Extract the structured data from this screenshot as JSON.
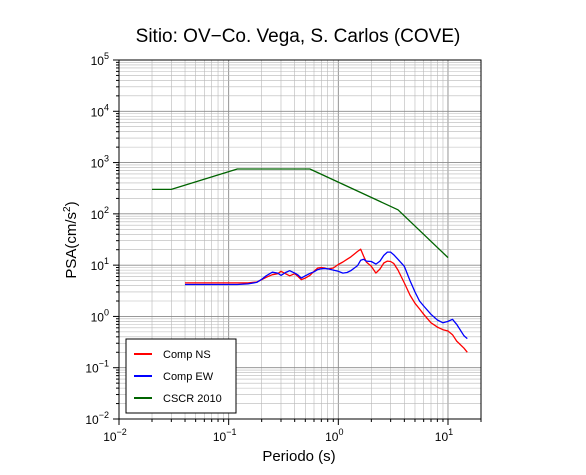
{
  "chart_data": {
    "type": "line",
    "title": "Sitio: OV−Co. Vega, S. Carlos (COVE)",
    "xlabel": "Periodo (s)",
    "ylabel_base": "PSA(cm/s",
    "ylabel_sup": "2",
    "ylabel_end": ")",
    "x_scale": "log",
    "y_scale": "log",
    "xlim": [
      0.01,
      20
    ],
    "ylim": [
      0.01,
      100000
    ],
    "grid": true,
    "legend_position": "bottom-left",
    "x_ticks": [
      {
        "value": 0.01,
        "base": "10",
        "exp": "−2"
      },
      {
        "value": 0.1,
        "base": "10",
        "exp": "−1"
      },
      {
        "value": 1,
        "base": "10",
        "exp": "0"
      },
      {
        "value": 10,
        "base": "10",
        "exp": "1"
      }
    ],
    "y_ticks": [
      {
        "value": 0.01,
        "base": "10",
        "exp": "−2"
      },
      {
        "value": 0.1,
        "base": "10",
        "exp": "−1"
      },
      {
        "value": 1,
        "base": "10",
        "exp": "0"
      },
      {
        "value": 10,
        "base": "10",
        "exp": "1"
      },
      {
        "value": 100,
        "base": "10",
        "exp": "2"
      },
      {
        "value": 1000,
        "base": "10",
        "exp": "3"
      },
      {
        "value": 10000,
        "base": "10",
        "exp": "4"
      },
      {
        "value": 100000,
        "base": "10",
        "exp": "5"
      }
    ],
    "series": [
      {
        "name": "Comp NS",
        "color": "#ff0000",
        "x": [
          0.04,
          0.06,
          0.08,
          0.1,
          0.12,
          0.15,
          0.18,
          0.2,
          0.22,
          0.25,
          0.28,
          0.3,
          0.33,
          0.36,
          0.4,
          0.43,
          0.46,
          0.5,
          0.55,
          0.6,
          0.65,
          0.7,
          0.75,
          0.8,
          0.9,
          1.0,
          1.1,
          1.2,
          1.3,
          1.4,
          1.5,
          1.6,
          1.7,
          1.8,
          2.0,
          2.2,
          2.4,
          2.6,
          2.8,
          3.0,
          3.2,
          3.5,
          4.0,
          4.5,
          5.0,
          5.5,
          6.0,
          7.0,
          8.0,
          9.0,
          10,
          11,
          12,
          14,
          15
        ],
        "y": [
          4.5,
          4.5,
          4.5,
          4.5,
          4.5,
          4.5,
          4.7,
          5.2,
          5.8,
          6.5,
          6.8,
          7.6,
          6.8,
          6.2,
          6.8,
          6.0,
          5.2,
          5.6,
          6.3,
          7.6,
          8.8,
          9.0,
          8.8,
          8.4,
          8.8,
          10.3,
          11.5,
          13.0,
          14.5,
          16.5,
          18.5,
          20.5,
          15.0,
          11.5,
          9.5,
          7.0,
          8.4,
          11.0,
          12.0,
          11.8,
          10.8,
          8.0,
          4.5,
          2.6,
          1.8,
          1.4,
          1.1,
          0.75,
          0.62,
          0.55,
          0.52,
          0.44,
          0.33,
          0.24,
          0.2
        ]
      },
      {
        "name": "Comp EW",
        "color": "#0000ff",
        "x": [
          0.04,
          0.06,
          0.08,
          0.1,
          0.12,
          0.15,
          0.18,
          0.2,
          0.22,
          0.25,
          0.28,
          0.3,
          0.33,
          0.36,
          0.4,
          0.43,
          0.46,
          0.5,
          0.55,
          0.6,
          0.65,
          0.7,
          0.75,
          0.8,
          0.9,
          1.0,
          1.1,
          1.2,
          1.3,
          1.4,
          1.5,
          1.6,
          1.7,
          1.8,
          2.0,
          2.2,
          2.4,
          2.6,
          2.8,
          3.0,
          3.2,
          3.5,
          4.0,
          4.5,
          5.0,
          5.5,
          6.0,
          7.0,
          8.0,
          9.0,
          10,
          11,
          12,
          14,
          15
        ],
        "y": [
          4.2,
          4.2,
          4.2,
          4.2,
          4.2,
          4.3,
          4.6,
          5.3,
          6.2,
          7.3,
          7.0,
          6.3,
          7.2,
          7.8,
          7.0,
          6.4,
          5.6,
          6.2,
          6.9,
          7.4,
          8.2,
          8.5,
          8.6,
          8.5,
          8.0,
          7.6,
          7.0,
          7.2,
          7.8,
          8.8,
          9.8,
          12.5,
          13.0,
          12.0,
          11.8,
          10.5,
          12.0,
          15.5,
          18.0,
          18.0,
          16.0,
          13.0,
          9.5,
          5.0,
          3.0,
          2.0,
          1.6,
          1.1,
          0.85,
          0.75,
          0.8,
          0.88,
          0.7,
          0.42,
          0.37
        ]
      },
      {
        "name": "CSCR 2010",
        "color": "#006400",
        "x": [
          0.02,
          0.03,
          0.12,
          0.55,
          3.5,
          10
        ],
        "y": [
          300,
          300,
          750,
          750,
          120,
          14
        ]
      }
    ]
  }
}
